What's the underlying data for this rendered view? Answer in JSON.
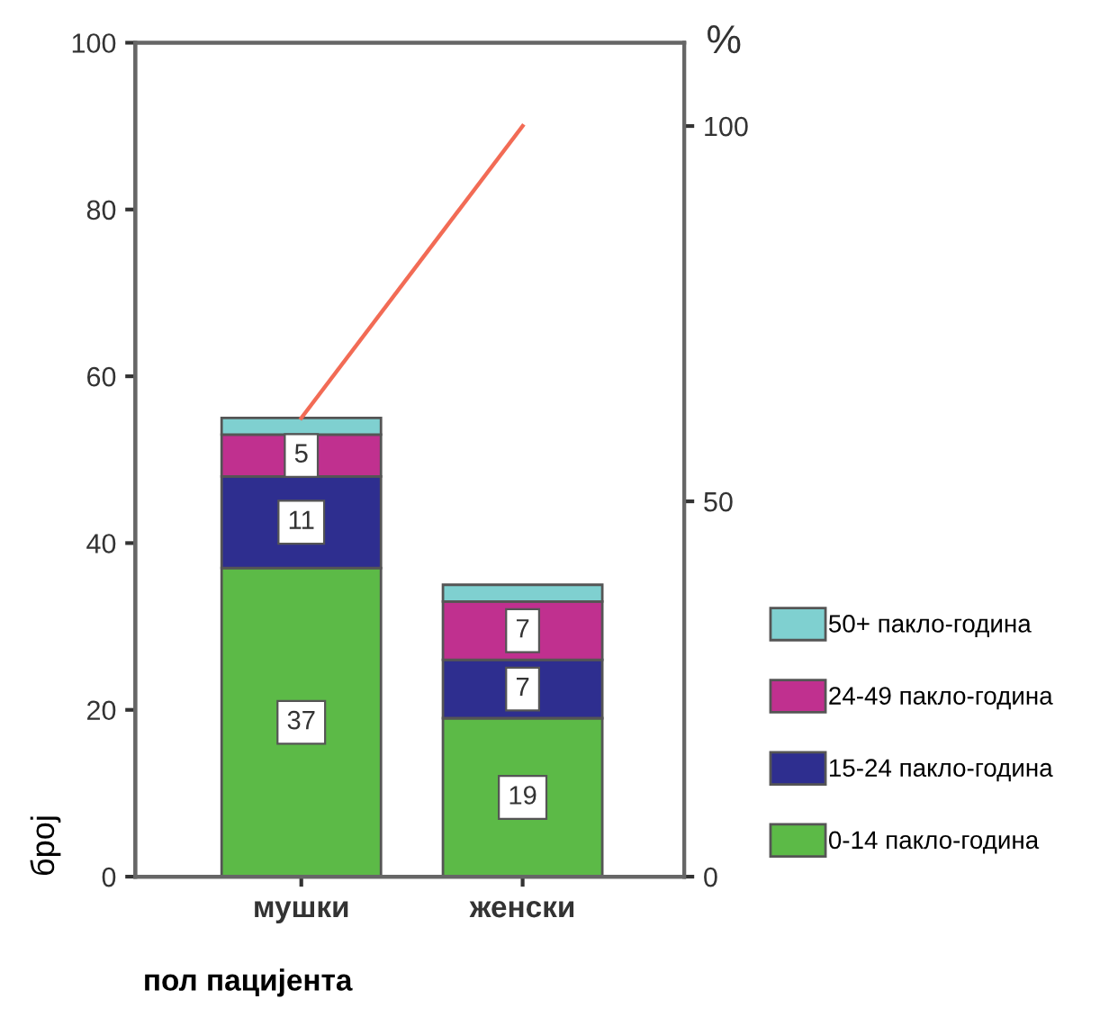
{
  "chart_data": {
    "type": "bar",
    "stacked": true,
    "categories": [
      "мушки",
      "женски"
    ],
    "xlabel": "пол пацијента",
    "ylabel": "број",
    "y2label": "%",
    "ylim": [
      0,
      100
    ],
    "yticks": [
      0,
      20,
      40,
      60,
      80,
      100
    ],
    "y2lim": [
      0,
      111.1
    ],
    "y2ticks": [
      0,
      50,
      100
    ],
    "legend": "right",
    "grid": false,
    "series": [
      {
        "name": "0-14 пакло-година",
        "color": "#5cba47",
        "values": [
          37,
          19
        ],
        "value_labels": [
          "37",
          "19"
        ]
      },
      {
        "name": "15-24 пакло-година",
        "color": "#2e2e8f",
        "values": [
          11,
          7
        ],
        "value_labels": [
          "11",
          "7"
        ]
      },
      {
        "name": "24-49 пакло-година",
        "color": "#c0308f",
        "values": [
          5,
          7
        ],
        "value_labels": [
          "5",
          "7"
        ]
      },
      {
        "name": "50+ пакло-година",
        "color": "#7fd0d0",
        "values": [
          2,
          2
        ],
        "value_labels": [
          null,
          null
        ]
      },
      {
        "type": "line",
        "axis": "y2",
        "color": "#f26b55",
        "values": [
          61.1,
          100
        ]
      }
    ]
  }
}
